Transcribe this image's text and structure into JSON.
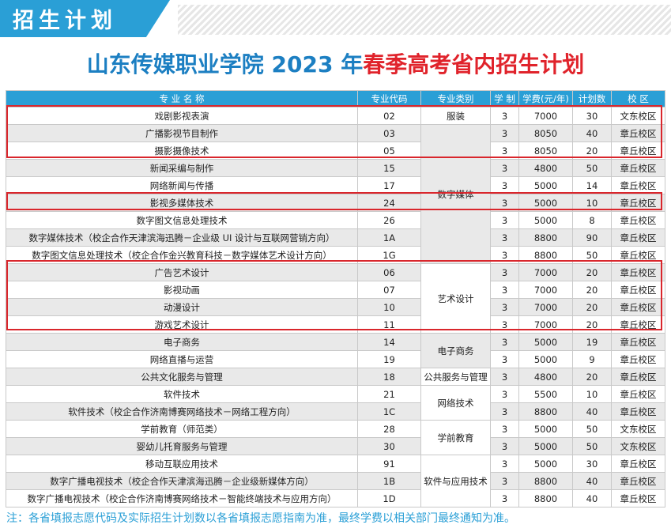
{
  "banner": {
    "title": "招生计划"
  },
  "title": {
    "part1": "山东传媒职业学院 2023 年",
    "part2": "春季高考省内招生计划"
  },
  "table": {
    "headers": [
      "专 业 名 称",
      "专业代码",
      "专业类别",
      "学 制",
      "学费(元/年)",
      "计划数",
      "校 区"
    ],
    "rows": [
      {
        "name": "戏剧影视表演",
        "code": "02",
        "years": "3",
        "fee": "7000",
        "plan": "30",
        "campus": "文东校区"
      },
      {
        "name": "广播影视节目制作",
        "code": "03",
        "years": "3",
        "fee": "8050",
        "plan": "40",
        "campus": "章丘校区"
      },
      {
        "name": "摄影摄像技术",
        "code": "05",
        "years": "3",
        "fee": "8050",
        "plan": "20",
        "campus": "章丘校区"
      },
      {
        "name": "新闻采编与制作",
        "code": "15",
        "years": "3",
        "fee": "4800",
        "plan": "50",
        "campus": "章丘校区"
      },
      {
        "name": "网络新闻与传播",
        "code": "17",
        "years": "3",
        "fee": "5000",
        "plan": "14",
        "campus": "章丘校区"
      },
      {
        "name": "影视多媒体技术",
        "code": "24",
        "years": "3",
        "fee": "5000",
        "plan": "10",
        "campus": "章丘校区"
      },
      {
        "name": "数字图文信息处理技术",
        "code": "26",
        "years": "3",
        "fee": "5000",
        "plan": "8",
        "campus": "章丘校区"
      },
      {
        "name": "数字媒体技术（校企合作天津滨海迅腾－企业级 UI 设计与互联网营销方向）",
        "code": "1A",
        "years": "3",
        "fee": "8800",
        "plan": "90",
        "campus": "章丘校区"
      },
      {
        "name": "数字图文信息处理技术（校企合作金兴教育科技－数字媒体艺术设计方向）",
        "code": "1G",
        "years": "3",
        "fee": "8800",
        "plan": "50",
        "campus": "章丘校区"
      },
      {
        "name": "广告艺术设计",
        "code": "06",
        "years": "3",
        "fee": "7000",
        "plan": "20",
        "campus": "章丘校区"
      },
      {
        "name": "影视动画",
        "code": "07",
        "years": "3",
        "fee": "7000",
        "plan": "20",
        "campus": "章丘校区"
      },
      {
        "name": "动漫设计",
        "code": "10",
        "years": "3",
        "fee": "7000",
        "plan": "20",
        "campus": "章丘校区"
      },
      {
        "name": "游戏艺术设计",
        "code": "11",
        "years": "3",
        "fee": "7000",
        "plan": "20",
        "campus": "章丘校区"
      },
      {
        "name": "电子商务",
        "code": "14",
        "years": "3",
        "fee": "5000",
        "plan": "19",
        "campus": "章丘校区"
      },
      {
        "name": "网络直播与运营",
        "code": "19",
        "years": "3",
        "fee": "5000",
        "plan": "9",
        "campus": "章丘校区"
      },
      {
        "name": "公共文化服务与管理",
        "code": "18",
        "years": "3",
        "fee": "4800",
        "plan": "20",
        "campus": "章丘校区"
      },
      {
        "name": "软件技术",
        "code": "21",
        "years": "3",
        "fee": "5500",
        "plan": "10",
        "campus": "章丘校区"
      },
      {
        "name": "软件技术（校企合作济南博赛网络技术－网络工程方向）",
        "code": "1C",
        "years": "3",
        "fee": "8800",
        "plan": "40",
        "campus": "章丘校区"
      },
      {
        "name": "学前教育（师范类）",
        "code": "28",
        "years": "3",
        "fee": "5000",
        "plan": "50",
        "campus": "文东校区"
      },
      {
        "name": "婴幼儿托育服务与管理",
        "code": "30",
        "years": "3",
        "fee": "5000",
        "plan": "50",
        "campus": "文东校区"
      },
      {
        "name": "移动互联应用技术",
        "code": "91",
        "years": "3",
        "fee": "5000",
        "plan": "30",
        "campus": "章丘校区"
      },
      {
        "name": "数字广播电视技术（校企合作天津滨海迅腾－企业级新媒体方向）",
        "code": "1B",
        "years": "3",
        "fee": "8800",
        "plan": "40",
        "campus": "章丘校区"
      },
      {
        "name": "数字广播电视技术（校企合作济南博赛网络技术－智能终端技术与应用方向）",
        "code": "1D",
        "years": "3",
        "fee": "8800",
        "plan": "40",
        "campus": "章丘校区"
      }
    ],
    "categories": [
      {
        "label": "服装",
        "rowspan": 1
      },
      {
        "label": "数字媒体",
        "rowspan": 8
      },
      {
        "label": "艺术设计",
        "rowspan": 4
      },
      {
        "label": "电子商务",
        "rowspan": 2
      },
      {
        "label": "公共服务与管理",
        "rowspan": 1
      },
      {
        "label": "网络技术",
        "rowspan": 2
      },
      {
        "label": "学前教育",
        "rowspan": 2
      },
      {
        "label": "软件与应用技术",
        "rowspan": 3
      }
    ]
  },
  "note": "注：各省填报志愿代码及实际招生计划数以各省填报志愿指南为准，最终学费以相关部门最终通知为准。"
}
